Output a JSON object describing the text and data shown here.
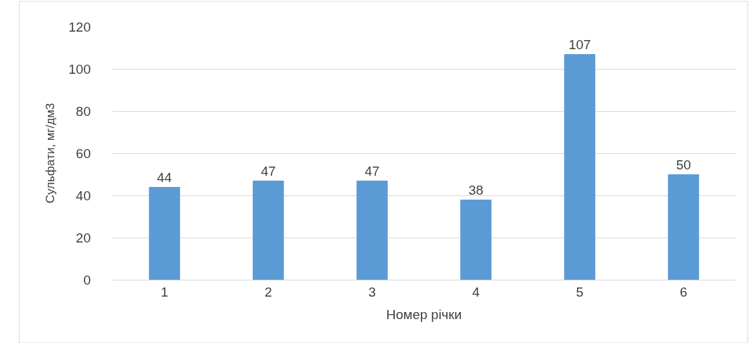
{
  "chart_data": {
    "type": "bar",
    "xlabel": "Номер річки",
    "ylabel": "Сульфати, мг/дм3",
    "categories": [
      "1",
      "2",
      "3",
      "4",
      "5",
      "6"
    ],
    "values": [
      44,
      47,
      47,
      38,
      107,
      50
    ],
    "color": "#5b9bd5",
    "ylim": [
      0,
      120
    ],
    "yticks": [
      0,
      20,
      40,
      60,
      80,
      100,
      120
    ],
    "grid": "y",
    "data_labels": true
  }
}
